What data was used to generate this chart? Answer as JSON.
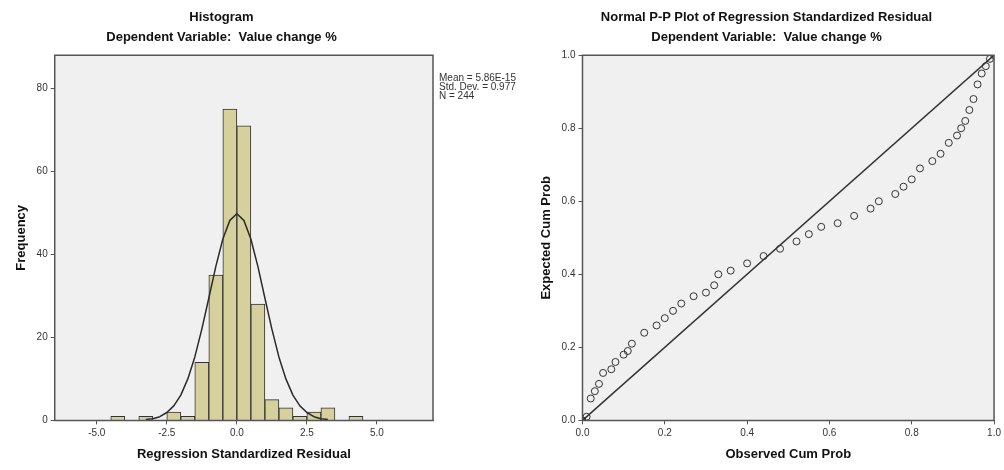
{
  "chart_data": [
    {
      "type": "histogram",
      "title": "Histogram",
      "subtitle": "Dependent Variable:  Value change %",
      "xlabel": "Regression Standardized Residual",
      "ylabel": "Frequency",
      "annotations": [
        "Mean = 5.86E-15",
        "Std. Dev. = 0.977",
        "N = 244"
      ],
      "series": [
        {
          "color": "#d6d19c",
          "bins": [
            -4.5,
            -4,
            -3.5,
            -3,
            -2.5,
            -2,
            -1.5,
            -1,
            -0.5,
            0,
            0.5,
            1,
            1.5,
            2,
            2.5,
            3,
            3.5,
            4,
            4.5
          ],
          "values": [
            1,
            0,
            1,
            0,
            2,
            1,
            14,
            35,
            75,
            71,
            28,
            5,
            3,
            1,
            2,
            3,
            0,
            1
          ]
        },
        {
          "type": "line",
          "marker": "none",
          "color": "#2b2b2b",
          "x": [
            -3.25,
            -3,
            -2.75,
            -2.5,
            -2.25,
            -2,
            -1.75,
            -1.5,
            -1.25,
            -1,
            -0.75,
            -0.5,
            -0.25,
            0,
            0.25,
            0.5,
            0.75,
            1,
            1.25,
            1.5,
            1.75,
            2,
            2.25,
            2.5,
            2.75,
            3,
            3.25
          ],
          "values": [
            0.2,
            0.4,
            0.9,
            1.9,
            3.5,
            6.1,
            10,
            15.3,
            22,
            29.5,
            37.1,
            43.7,
            48.2,
            49.8,
            48.2,
            43.7,
            37.1,
            29.5,
            22,
            15.3,
            10,
            6.1,
            3.5,
            1.9,
            0.9,
            0.4,
            0.2
          ]
        }
      ],
      "xlim": [
        -6.5,
        7
      ],
      "ylim": [
        0,
        88
      ],
      "xticks": [
        {
          "value": -5,
          "label": "-5.0"
        },
        {
          "value": -2.5,
          "label": "-2.5"
        },
        {
          "value": 0,
          "label": "0.0"
        },
        {
          "value": 2.5,
          "label": "2.5"
        },
        {
          "value": 5,
          "label": "5.0"
        }
      ],
      "yticks": [
        0,
        20,
        40,
        60,
        80
      ],
      "grid": false,
      "legend": false
    },
    {
      "type": "scatter",
      "title": "Normal P-P Plot of Regression Standardized Residual",
      "subtitle": "Dependent Variable:  Value change %",
      "xlabel": "Observed Cum Prob",
      "ylabel": "Expected Cum Prob",
      "series": [
        {
          "marker": "circle",
          "color": "#333333",
          "x": [
            0,
            0.01,
            0.02,
            0.03,
            0.04,
            0.05,
            0.07,
            0.08,
            0.1,
            0.11,
            0.12,
            0.15,
            0.18,
            0.2,
            0.22,
            0.24,
            0.27,
            0.3,
            0.32,
            0.33,
            0.36,
            0.4,
            0.44,
            0.48,
            0.52,
            0.55,
            0.58,
            0.62,
            0.66,
            0.7,
            0.72,
            0.76,
            0.78,
            0.8,
            0.82,
            0.85,
            0.87,
            0.89,
            0.91,
            0.92,
            0.93,
            0.94,
            0.95,
            0.96,
            0.97,
            0.98,
            0.99,
            1
          ],
          "values": [
            0,
            0.01,
            0.06,
            0.08,
            0.1,
            0.13,
            0.14,
            0.16,
            0.18,
            0.19,
            0.21,
            0.24,
            0.26,
            0.28,
            0.3,
            0.32,
            0.34,
            0.35,
            0.37,
            0.4,
            0.41,
            0.43,
            0.45,
            0.47,
            0.49,
            0.51,
            0.53,
            0.54,
            0.56,
            0.58,
            0.6,
            0.62,
            0.64,
            0.66,
            0.69,
            0.71,
            0.73,
            0.76,
            0.78,
            0.8,
            0.82,
            0.85,
            0.88,
            0.92,
            0.95,
            0.97,
            0.99,
            1
          ]
        },
        {
          "type": "line",
          "color": "#333333",
          "x": [
            0,
            1
          ],
          "values": [
            0,
            1
          ]
        }
      ],
      "xlim": [
        0,
        1
      ],
      "ylim": [
        0,
        1
      ],
      "xticks": [
        {
          "value": 0,
          "label": "0.0"
        },
        {
          "value": 0.2,
          "label": "0.2"
        },
        {
          "value": 0.4,
          "label": "0.4"
        },
        {
          "value": 0.6,
          "label": "0.6"
        },
        {
          "value": 0.8,
          "label": "0.8"
        },
        {
          "value": 1,
          "label": "1.0"
        }
      ],
      "yticks": [
        {
          "value": 0,
          "label": "0.0"
        },
        {
          "value": 0.2,
          "label": "0.2"
        },
        {
          "value": 0.4,
          "label": "0.4"
        },
        {
          "value": 0.6,
          "label": "0.6"
        },
        {
          "value": 0.8,
          "label": "0.8"
        },
        {
          "value": 1,
          "label": "1.0"
        }
      ],
      "grid": false,
      "legend": false
    }
  ]
}
